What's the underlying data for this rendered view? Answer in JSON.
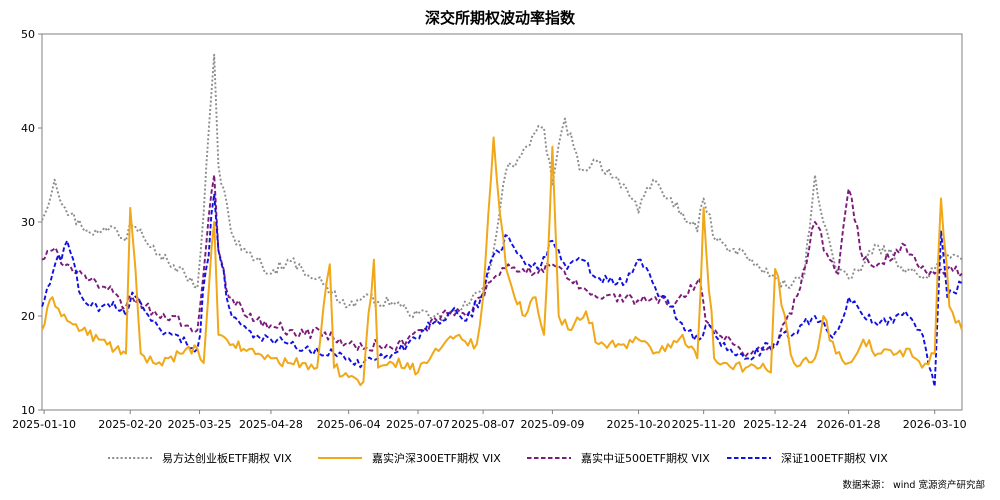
{
  "chart_data": {
    "type": "line",
    "title": "深交所期权波动率指数",
    "xlabel": "",
    "ylabel": "",
    "ylim": [
      10,
      50
    ],
    "yticks": [
      10,
      20,
      30,
      40,
      50
    ],
    "xticks": [
      "2025-01-10",
      "2025-02-20",
      "2025-03-25",
      "2025-04-28",
      "2025-06-04",
      "2025-07-07",
      "2025-08-07",
      "2025-09-09",
      "2025-10-20",
      "2025-11-20",
      "2025-12-24",
      "2026-01-28",
      "2026-03-10"
    ],
    "x_range": [
      "2025-01-09",
      "2026-03-23"
    ],
    "grid": false,
    "legend_position": "bottom",
    "source": "数据来源： wind  宽源资产研究部",
    "series": [
      {
        "name": "易方达创业板ETF期权 VIX",
        "color": "#8c8c8c",
        "dash": "dot",
        "x": [
          "2025-01-09",
          "2025-01-15",
          "2025-01-20",
          "2025-01-28",
          "2025-02-05",
          "2025-02-12",
          "2025-02-18",
          "2025-02-20",
          "2025-02-25",
          "2025-03-03",
          "2025-03-10",
          "2025-03-18",
          "2025-03-24",
          "2025-03-27",
          "2025-04-01",
          "2025-04-03",
          "2025-04-07",
          "2025-04-09",
          "2025-04-14",
          "2025-04-21",
          "2025-04-28",
          "2025-05-06",
          "2025-05-13",
          "2025-05-20",
          "2025-05-27",
          "2025-06-04",
          "2025-06-11",
          "2025-06-18",
          "2025-06-25",
          "2025-07-02",
          "2025-07-07",
          "2025-07-14",
          "2025-07-21",
          "2025-07-28",
          "2025-08-01",
          "2025-08-07",
          "2025-08-12",
          "2025-08-18",
          "2025-08-25",
          "2025-09-01",
          "2025-09-05",
          "2025-09-09",
          "2025-09-15",
          "2025-09-22",
          "2025-09-30",
          "2025-10-13",
          "2025-10-20",
          "2025-10-27",
          "2025-11-03",
          "2025-11-10",
          "2025-11-17",
          "2025-11-20",
          "2025-11-26",
          "2025-12-03",
          "2025-12-10",
          "2025-12-17",
          "2025-12-24",
          "2025-12-31",
          "2026-01-07",
          "2026-01-12",
          "2026-01-16",
          "2026-01-23",
          "2026-01-28",
          "2026-02-04",
          "2026-02-11",
          "2026-02-25",
          "2026-03-04",
          "2026-03-10",
          "2026-03-16",
          "2026-03-23"
        ],
        "values": [
          30.2,
          34.5,
          31.5,
          29.5,
          28.8,
          29.5,
          28.0,
          30.0,
          29.2,
          27.5,
          25.8,
          24.5,
          23.0,
          31.0,
          47.8,
          36.0,
          32.0,
          29.0,
          27.0,
          26.0,
          24.5,
          26.0,
          25.0,
          24.0,
          22.5,
          21.0,
          22.0,
          21.5,
          21.5,
          20.5,
          20.2,
          19.8,
          20.0,
          20.8,
          21.5,
          23.0,
          27.0,
          35.5,
          37.0,
          39.5,
          40.0,
          34.0,
          41.0,
          35.5,
          36.5,
          34.0,
          31.0,
          34.5,
          32.5,
          31.0,
          29.0,
          32.5,
          28.0,
          27.0,
          26.5,
          25.0,
          24.0,
          23.0,
          24.5,
          35.0,
          30.0,
          24.5,
          24.0,
          25.5,
          27.5,
          25.0,
          24.0,
          25.0,
          26.5,
          26.0
        ]
      },
      {
        "name": "嘉实沪深300ETF期权 VIX",
        "color": "#f0a818",
        "dash": "solid",
        "x": [
          "2025-01-09",
          "2025-01-14",
          "2025-01-21",
          "2025-01-28",
          "2025-02-05",
          "2025-02-13",
          "2025-02-18",
          "2025-02-20",
          "2025-02-25",
          "2025-03-03",
          "2025-03-10",
          "2025-03-17",
          "2025-03-24",
          "2025-03-27",
          "2025-04-01",
          "2025-04-03",
          "2025-04-07",
          "2025-04-10",
          "2025-04-15",
          "2025-04-22",
          "2025-04-28",
          "2025-05-06",
          "2025-05-13",
          "2025-05-20",
          "2025-05-26",
          "2025-05-28",
          "2025-06-04",
          "2025-06-11",
          "2025-06-16",
          "2025-06-18",
          "2025-06-25",
          "2025-07-02",
          "2025-07-07",
          "2025-07-14",
          "2025-07-21",
          "2025-07-28",
          "2025-08-04",
          "2025-08-07",
          "2025-08-12",
          "2025-08-18",
          "2025-08-22",
          "2025-08-27",
          "2025-09-01",
          "2025-09-05",
          "2025-09-09",
          "2025-09-12",
          "2025-09-18",
          "2025-09-25",
          "2025-10-01",
          "2025-10-13",
          "2025-10-20",
          "2025-10-27",
          "2025-11-03",
          "2025-11-10",
          "2025-11-17",
          "2025-11-20",
          "2025-11-25",
          "2025-12-01",
          "2025-12-10",
          "2025-12-17",
          "2025-12-22",
          "2025-12-24",
          "2026-01-02",
          "2026-01-12",
          "2026-01-16",
          "2026-01-22",
          "2026-01-28",
          "2026-02-04",
          "2026-02-11",
          "2026-02-20",
          "2026-02-26",
          "2026-03-04",
          "2026-03-10",
          "2026-03-13",
          "2026-03-17",
          "2026-03-23"
        ],
        "values": [
          18.5,
          22.0,
          19.5,
          18.5,
          17.5,
          16.5,
          16.0,
          31.5,
          16.0,
          15.0,
          15.5,
          16.0,
          16.5,
          15.0,
          30.0,
          18.0,
          17.5,
          17.0,
          16.5,
          16.0,
          15.5,
          15.0,
          15.0,
          14.5,
          25.5,
          14.5,
          13.5,
          13.0,
          26.0,
          14.5,
          15.0,
          15.0,
          14.0,
          16.0,
          17.5,
          17.5,
          17.0,
          22.0,
          39.0,
          25.0,
          22.0,
          20.0,
          22.0,
          18.0,
          38.0,
          20.0,
          18.5,
          20.5,
          17.0,
          17.0,
          17.5,
          16.0,
          17.0,
          18.0,
          15.5,
          31.5,
          15.5,
          15.0,
          14.5,
          14.5,
          14.0,
          25.0,
          15.0,
          15.5,
          20.0,
          16.0,
          15.0,
          17.5,
          16.0,
          16.0,
          16.5,
          14.5,
          16.0,
          32.5,
          21.0,
          18.5
        ]
      },
      {
        "name": "嘉实中证500ETF期权 VIX",
        "color": "#7a1a7a",
        "dash": "dash",
        "x": [
          "2025-01-09",
          "2025-01-14",
          "2025-01-21",
          "2025-01-28",
          "2025-02-05",
          "2025-02-12",
          "2025-02-18",
          "2025-02-21",
          "2025-02-27",
          "2025-03-05",
          "2025-03-12",
          "2025-03-19",
          "2025-03-24",
          "2025-04-01",
          "2025-04-03",
          "2025-04-08",
          "2025-04-14",
          "2025-04-21",
          "2025-04-28",
          "2025-05-07",
          "2025-05-14",
          "2025-05-21",
          "2025-05-28",
          "2025-06-04",
          "2025-06-11",
          "2025-06-18",
          "2025-06-25",
          "2025-07-02",
          "2025-07-09",
          "2025-07-16",
          "2025-07-23",
          "2025-07-30",
          "2025-08-06",
          "2025-08-12",
          "2025-08-19",
          "2025-08-26",
          "2025-09-02",
          "2025-09-09",
          "2025-09-16",
          "2025-09-23",
          "2025-09-30",
          "2025-10-14",
          "2025-10-21",
          "2025-10-28",
          "2025-11-04",
          "2025-11-11",
          "2025-11-18",
          "2025-11-21",
          "2025-11-27",
          "2025-12-04",
          "2025-12-11",
          "2025-12-18",
          "2025-12-25",
          "2026-01-05",
          "2026-01-12",
          "2026-01-19",
          "2026-01-23",
          "2026-01-28",
          "2026-02-04",
          "2026-02-11",
          "2026-02-24",
          "2026-03-03",
          "2026-03-10",
          "2026-03-16",
          "2026-03-23"
        ],
        "values": [
          26.0,
          27.0,
          25.5,
          24.5,
          23.0,
          22.5,
          21.0,
          22.0,
          21.0,
          20.0,
          20.0,
          19.0,
          18.5,
          35.0,
          27.0,
          22.0,
          21.0,
          19.5,
          19.0,
          18.5,
          18.0,
          18.5,
          17.5,
          17.0,
          16.5,
          17.0,
          16.5,
          17.5,
          18.5,
          19.5,
          20.5,
          20.0,
          22.0,
          24.0,
          25.5,
          25.0,
          24.5,
          25.5,
          24.0,
          23.0,
          22.0,
          22.0,
          21.5,
          22.0,
          21.0,
          22.0,
          24.0,
          19.5,
          18.0,
          17.0,
          16.0,
          16.5,
          17.0,
          23.0,
          30.0,
          26.0,
          24.5,
          33.5,
          26.0,
          25.5,
          27.5,
          25.0,
          24.5,
          25.0,
          24.5
        ]
      },
      {
        "name": "深证100ETF期权  VIX",
        "color": "#1010e0",
        "dash": "dash",
        "x": [
          "2025-01-09",
          "2025-01-14",
          "2025-01-21",
          "2025-01-28",
          "2025-02-05",
          "2025-02-12",
          "2025-02-18",
          "2025-02-21",
          "2025-02-27",
          "2025-03-05",
          "2025-03-12",
          "2025-03-19",
          "2025-03-24",
          "2025-04-01",
          "2025-04-03",
          "2025-04-08",
          "2025-04-14",
          "2025-04-21",
          "2025-04-28",
          "2025-05-07",
          "2025-05-14",
          "2025-05-21",
          "2025-05-28",
          "2025-06-04",
          "2025-06-11",
          "2025-06-18",
          "2025-06-25",
          "2025-07-02",
          "2025-07-09",
          "2025-07-16",
          "2025-07-23",
          "2025-07-30",
          "2025-08-06",
          "2025-08-12",
          "2025-08-19",
          "2025-08-26",
          "2025-09-02",
          "2025-09-09",
          "2025-09-16",
          "2025-09-23",
          "2025-09-30",
          "2025-10-14",
          "2025-10-21",
          "2025-10-28",
          "2025-11-04",
          "2025-11-11",
          "2025-11-18",
          "2025-11-21",
          "2025-11-27",
          "2025-12-04",
          "2025-12-11",
          "2025-12-18",
          "2025-12-25",
          "2026-01-05",
          "2026-01-12",
          "2026-01-19",
          "2026-01-23",
          "2026-01-28",
          "2026-02-04",
          "2026-02-11",
          "2026-02-24",
          "2026-03-03",
          "2026-03-10",
          "2026-03-13",
          "2026-03-16",
          "2026-03-23"
        ],
        "values": [
          21.0,
          24.5,
          28.0,
          22.0,
          20.5,
          21.5,
          20.0,
          22.5,
          20.5,
          19.0,
          18.0,
          17.0,
          16.5,
          33.0,
          27.0,
          21.0,
          19.0,
          18.0,
          17.5,
          17.0,
          16.5,
          16.0,
          16.0,
          15.5,
          15.0,
          15.5,
          16.0,
          17.0,
          18.5,
          19.5,
          20.5,
          19.5,
          22.0,
          26.5,
          28.5,
          26.0,
          25.0,
          28.0,
          25.0,
          26.0,
          24.0,
          23.5,
          26.0,
          23.0,
          21.0,
          18.5,
          17.5,
          19.0,
          17.5,
          16.0,
          15.5,
          16.5,
          17.0,
          19.0,
          20.0,
          18.0,
          18.5,
          22.0,
          20.0,
          19.0,
          20.5,
          18.5,
          12.5,
          29.0,
          22.0,
          23.5
        ]
      }
    ]
  }
}
